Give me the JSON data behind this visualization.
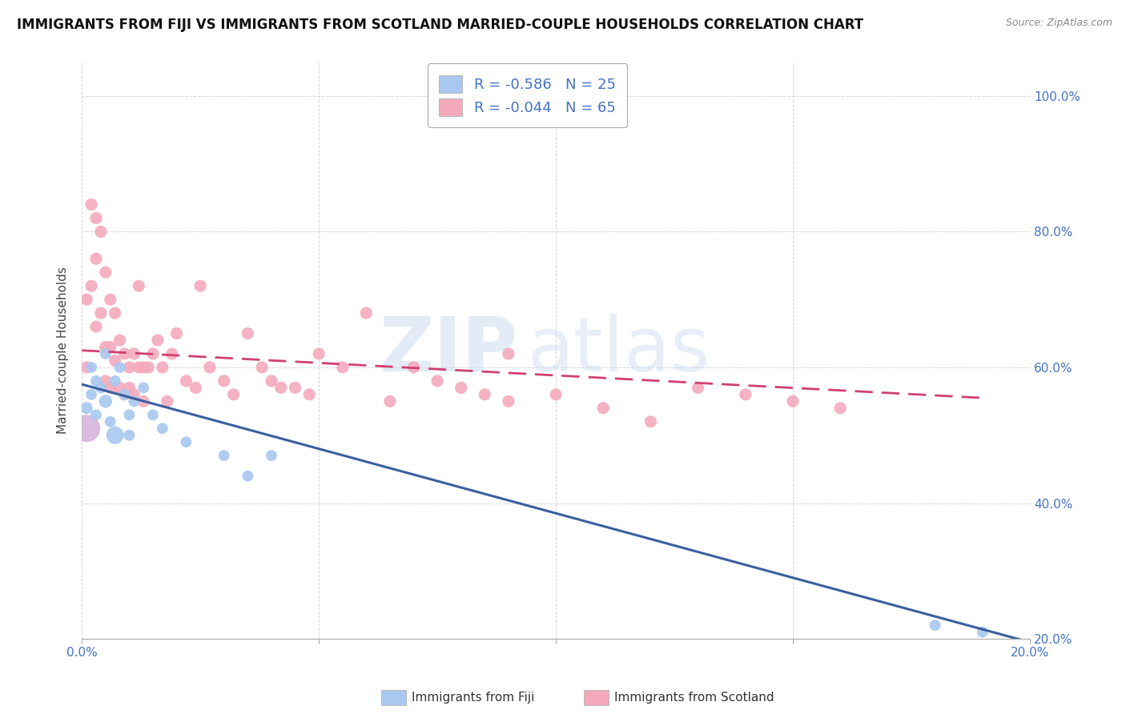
{
  "title": "IMMIGRANTS FROM FIJI VS IMMIGRANTS FROM SCOTLAND MARRIED-COUPLE HOUSEHOLDS CORRELATION CHART",
  "source": "Source: ZipAtlas.com",
  "ylabel": "Married-couple Households",
  "x_min": 0.0,
  "x_max": 0.2,
  "y_min": 0.2,
  "y_max": 1.05,
  "legend_r_fiji": "-0.586",
  "legend_n_fiji": "25",
  "legend_r_scotland": "-0.044",
  "legend_n_scotland": "65",
  "fiji_color": "#a8c8f0",
  "fiji_line_color": "#3a5fa0",
  "scotland_color": "#f4aabc",
  "scotland_line_color": "#d04070",
  "fiji_points_x": [
    0.001,
    0.002,
    0.002,
    0.003,
    0.003,
    0.004,
    0.005,
    0.005,
    0.006,
    0.007,
    0.007,
    0.008,
    0.009,
    0.01,
    0.01,
    0.011,
    0.013,
    0.015,
    0.017,
    0.022,
    0.03,
    0.035,
    0.04,
    0.18,
    0.19
  ],
  "fiji_points_y": [
    0.54,
    0.6,
    0.56,
    0.58,
    0.53,
    0.57,
    0.55,
    0.62,
    0.52,
    0.5,
    0.58,
    0.6,
    0.56,
    0.53,
    0.5,
    0.55,
    0.57,
    0.53,
    0.51,
    0.49,
    0.47,
    0.44,
    0.47,
    0.22,
    0.21
  ],
  "fiji_sizes": [
    120,
    100,
    100,
    100,
    100,
    100,
    140,
    100,
    100,
    250,
    100,
    100,
    100,
    100,
    100,
    100,
    100,
    100,
    100,
    100,
    100,
    100,
    100,
    100,
    100
  ],
  "scotland_points_x": [
    0.001,
    0.001,
    0.002,
    0.002,
    0.003,
    0.003,
    0.003,
    0.004,
    0.004,
    0.005,
    0.005,
    0.005,
    0.006,
    0.006,
    0.006,
    0.007,
    0.007,
    0.008,
    0.008,
    0.009,
    0.009,
    0.01,
    0.01,
    0.011,
    0.011,
    0.012,
    0.012,
    0.013,
    0.013,
    0.014,
    0.015,
    0.016,
    0.017,
    0.018,
    0.019,
    0.02,
    0.022,
    0.024,
    0.025,
    0.027,
    0.03,
    0.032,
    0.035,
    0.038,
    0.04,
    0.042,
    0.045,
    0.048,
    0.05,
    0.055,
    0.06,
    0.065,
    0.07,
    0.075,
    0.08,
    0.085,
    0.09,
    0.1,
    0.11,
    0.12,
    0.13,
    0.14,
    0.15,
    0.16,
    0.09
  ],
  "scotland_points_y": [
    0.7,
    0.6,
    0.84,
    0.72,
    0.82,
    0.76,
    0.66,
    0.8,
    0.68,
    0.74,
    0.63,
    0.58,
    0.7,
    0.63,
    0.57,
    0.68,
    0.61,
    0.64,
    0.57,
    0.62,
    0.56,
    0.6,
    0.57,
    0.62,
    0.56,
    0.72,
    0.6,
    0.6,
    0.55,
    0.6,
    0.62,
    0.64,
    0.6,
    0.55,
    0.62,
    0.65,
    0.58,
    0.57,
    0.72,
    0.6,
    0.58,
    0.56,
    0.65,
    0.6,
    0.58,
    0.57,
    0.57,
    0.56,
    0.62,
    0.6,
    0.68,
    0.55,
    0.6,
    0.58,
    0.57,
    0.56,
    0.55,
    0.56,
    0.54,
    0.52,
    0.57,
    0.56,
    0.55,
    0.54,
    0.62
  ],
  "fiji_trend_x": [
    0.0,
    0.2
  ],
  "fiji_trend_y": [
    0.575,
    0.195
  ],
  "scotland_trend_x": [
    0.0,
    0.19
  ],
  "scotland_trend_y": [
    0.625,
    0.555
  ],
  "watermark_zip": "ZIP",
  "watermark_atlas": "atlas",
  "tick_color": "#4472c4",
  "axis_label_fontsize": 11,
  "title_fontsize": 12,
  "bottom_label_fiji": "Immigrants from Fiji",
  "bottom_label_scotland": "Immigrants from Scotland"
}
